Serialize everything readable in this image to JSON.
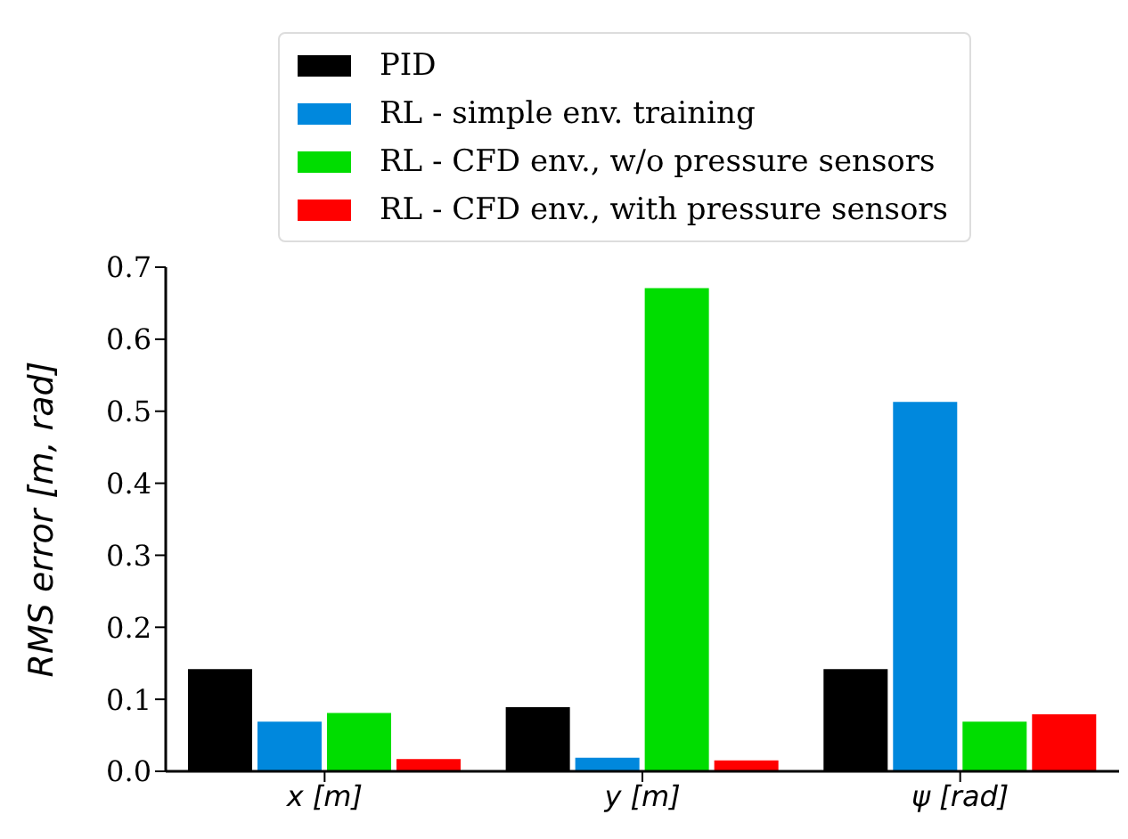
{
  "chart_data": {
    "type": "bar",
    "ylabel": "RMS error [m,  rad]",
    "categories": [
      "x [m]",
      "y [m]",
      "ψ [rad]"
    ],
    "series": [
      {
        "name": "PID",
        "color": "#000000",
        "values": [
          0.142,
          0.089,
          0.142
        ]
      },
      {
        "name": "RL - simple env. training",
        "color": "#0088dd",
        "values": [
          0.069,
          0.019,
          0.513
        ]
      },
      {
        "name": "RL - CFD env., w/o pressure sensors",
        "color": "#00dd00",
        "values": [
          0.081,
          0.671,
          0.069
        ]
      },
      {
        "name": "RL - CFD env., with pressure sensors",
        "color": "#ff0000",
        "values": [
          0.017,
          0.015,
          0.079
        ]
      }
    ],
    "ylim": [
      0,
      0.7
    ],
    "yticks": [
      {
        "value": 0,
        "label": "0.0"
      },
      0.1,
      0.2,
      0.3,
      0.4,
      0.5,
      0.6,
      0.7
    ],
    "grid": false,
    "legend": "top"
  }
}
